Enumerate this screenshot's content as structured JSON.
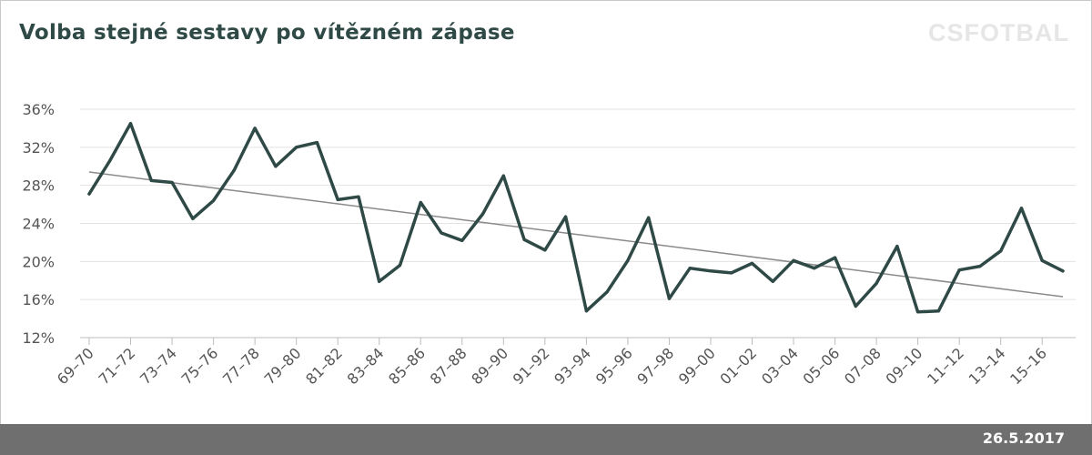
{
  "chart_data": {
    "type": "line",
    "title": "Volba stejné sestavy po vítězném zápase",
    "x": [
      "69–70",
      "70–71",
      "71–72",
      "72–73",
      "73–74",
      "74–75",
      "75–76",
      "76–77",
      "77–78",
      "78–79",
      "79–80",
      "80–81",
      "81–82",
      "82–83",
      "83–84",
      "84–85",
      "85–86",
      "86–87",
      "87–88",
      "88–89",
      "89–90",
      "90–91",
      "91–92",
      "92–93",
      "93–94",
      "94–95",
      "95–96",
      "96–97",
      "97–98",
      "98–99",
      "99–00",
      "00–01",
      "01–02",
      "02–03",
      "03–04",
      "04–05",
      "05–06",
      "06–07",
      "07–08",
      "08–09",
      "09–10",
      "10–11",
      "11–12",
      "12–13",
      "13–14",
      "14–15",
      "15–16",
      "16–17"
    ],
    "x_tick_labels": [
      "69–70",
      "71–72",
      "73–74",
      "75–76",
      "77–78",
      "79–80",
      "81–82",
      "83–84",
      "85–86",
      "87–88",
      "89–90",
      "91–92",
      "93–94",
      "95–96",
      "97–98",
      "99–00",
      "01–02",
      "03–04",
      "05–06",
      "07–08",
      "09–10",
      "11–12",
      "13–14",
      "15–16"
    ],
    "series": [
      {
        "values": [
          27.1,
          30.6,
          34.5,
          28.5,
          28.3,
          24.5,
          26.4,
          29.6,
          34.0,
          30.0,
          32.0,
          32.5,
          26.5,
          26.8,
          17.9,
          19.6,
          26.2,
          23.0,
          22.2,
          25.0,
          29.0,
          22.3,
          21.2,
          24.7,
          14.8,
          16.8,
          20.1,
          24.6,
          16.1,
          19.3,
          19.0,
          18.8,
          19.8,
          17.9,
          20.1,
          19.3,
          20.4,
          15.3,
          17.7,
          21.6,
          14.7,
          14.8,
          19.1,
          19.5,
          21.1,
          25.6,
          20.1,
          19.0
        ],
        "color": "#2f4a46"
      }
    ],
    "trendline": {
      "start": 29.4,
      "end": 16.3,
      "color": "#8a8a8a"
    },
    "y_tick_labels": [
      "12%",
      "16%",
      "20%",
      "24%",
      "28%",
      "32%",
      "36%"
    ],
    "ylim": [
      12,
      36
    ],
    "grid": true,
    "xlabel": "",
    "ylabel": ""
  },
  "brand": "CSFOTBAL",
  "footer": {
    "date": "26.5.2017"
  }
}
